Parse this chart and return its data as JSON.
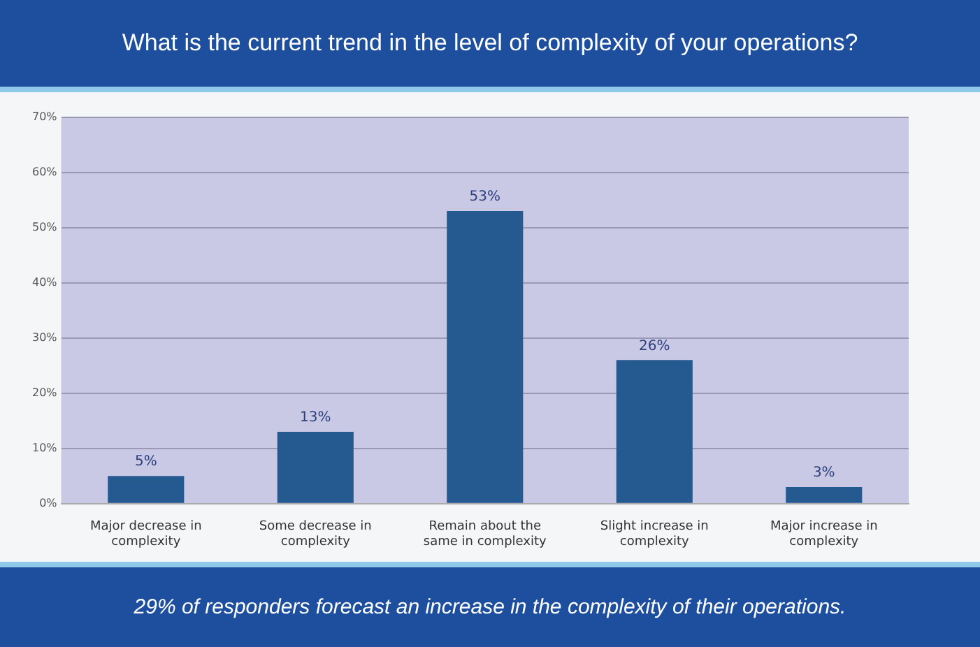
{
  "chart_data": {
    "type": "bar",
    "title": "What is the current trend in the level of complexity of your operations?",
    "categories": [
      "Major decrease in complexity",
      "Some decrease in complexity",
      "Remain about the same in complexity",
      "Slight increase in complexity",
      "Major increase in complexity"
    ],
    "values": [
      5,
      13,
      53,
      26,
      3
    ],
    "color": "#255a91",
    "ylim": [
      0,
      70
    ],
    "yticks": [
      {
        "value": 0,
        "label": "0%"
      },
      {
        "value": 10,
        "label": "10%"
      },
      {
        "value": 20,
        "label": "20%"
      },
      {
        "value": 30,
        "label": "30%"
      },
      {
        "value": 40,
        "label": "40%"
      },
      {
        "value": 50,
        "label": "50%"
      },
      {
        "value": 60,
        "label": "60%"
      },
      {
        "value": 70,
        "label": "70%"
      }
    ],
    "grid": "y",
    "legend": false,
    "value_labels": [
      "5%",
      "13%",
      "53%",
      "26%",
      "3%"
    ],
    "annotations": [
      "29% of responders forecast an increase in the complexity of their operations."
    ]
  }
}
